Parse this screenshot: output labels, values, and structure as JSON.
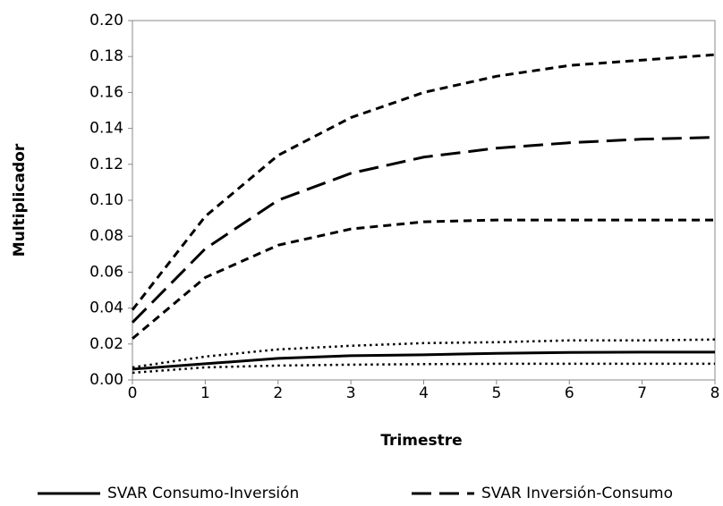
{
  "chart_data": {
    "type": "line",
    "xlabel": "Trimestre",
    "ylabel": "Multiplicador",
    "x": [
      0,
      1,
      2,
      3,
      4,
      5,
      6,
      7,
      8
    ],
    "xlim": [
      0,
      8
    ],
    "xticks": [
      0,
      1,
      2,
      3,
      4,
      5,
      6,
      7,
      8
    ],
    "ylim": [
      0,
      0.2
    ],
    "yticks": [
      {
        "value": 0,
        "label": "0.00"
      },
      {
        "value": 0.02,
        "label": "0.02"
      },
      {
        "value": 0.04,
        "label": "0.04"
      },
      {
        "value": 0.06,
        "label": "0.06"
      },
      {
        "value": 0.08,
        "label": "0.08"
      },
      {
        "value": 0.1,
        "label": "0.10"
      },
      {
        "value": 0.12,
        "label": "0.12"
      },
      {
        "value": 0.14,
        "label": "0.14"
      },
      {
        "value": 0.16,
        "label": "0.16"
      },
      {
        "value": 0.18,
        "label": "0.18"
      },
      {
        "value": 0.2,
        "label": "0.20"
      }
    ],
    "grid": false,
    "legend": "bottom",
    "series": [
      {
        "name": "SVAR Consumo-Inversión",
        "color": "#000000",
        "dash": "solid",
        "values": [
          0.006,
          0.009,
          0.012,
          0.0135,
          0.014,
          0.0148,
          0.0153,
          0.0155,
          0.0155
        ]
      },
      {
        "name": "SVAR Inversión-Consumo",
        "color": "#000000",
        "dash": "long",
        "values": [
          0.032,
          0.073,
          0.1,
          0.115,
          0.124,
          0.129,
          0.132,
          0.134,
          0.135
        ]
      },
      {
        "color": "#000000",
        "dash": "dotted",
        "values": [
          0.007,
          0.013,
          0.017,
          0.019,
          0.0205,
          0.021,
          0.022,
          0.022,
          0.0225
        ]
      },
      {
        "color": "#000000",
        "dash": "dotted",
        "values": [
          0.004,
          0.007,
          0.008,
          0.0085,
          0.0088,
          0.009,
          0.009,
          0.009,
          0.009
        ]
      },
      {
        "color": "#000000",
        "dash": "short",
        "values": [
          0.039,
          0.091,
          0.125,
          0.146,
          0.16,
          0.169,
          0.175,
          0.178,
          0.181
        ]
      },
      {
        "color": "#000000",
        "dash": "short",
        "values": [
          0.023,
          0.057,
          0.075,
          0.084,
          0.088,
          0.089,
          0.089,
          0.089,
          0.089
        ]
      }
    ]
  }
}
